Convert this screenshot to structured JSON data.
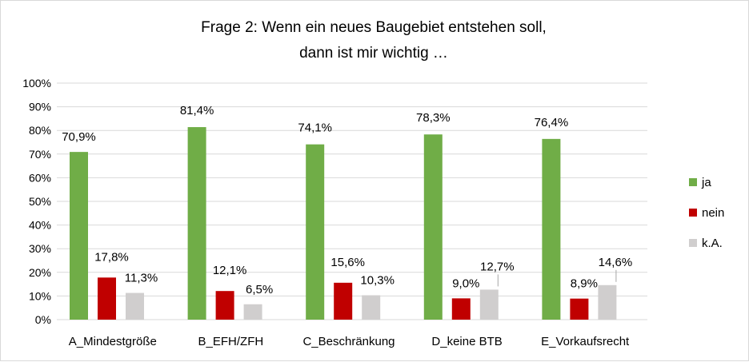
{
  "chart_data": {
    "type": "bar",
    "title_lines": [
      "Frage 2: Wenn ein neues Baugebiet entstehen soll,",
      "dann ist mir wichtig …"
    ],
    "categories": [
      "A_Mindestgröße",
      "B_EFH/ZFH",
      "C_Beschränkung",
      "D_keine BTB",
      "E_Vorkaufsrecht"
    ],
    "series": [
      {
        "name": "ja",
        "color": "#70ad47",
        "values": [
          70.9,
          81.4,
          74.1,
          78.3,
          76.4
        ],
        "labels": [
          "70,9%",
          "81,4%",
          "74,1%",
          "78,3%",
          "76,4%"
        ]
      },
      {
        "name": "nein",
        "color": "#c00000",
        "values": [
          17.8,
          12.1,
          15.6,
          9.0,
          8.9
        ],
        "labels": [
          "17,8%",
          "12,1%",
          "15,6%",
          "9,0%",
          "8,9%"
        ]
      },
      {
        "name": "k.A.",
        "color": "#d0cece",
        "values": [
          11.3,
          6.5,
          10.3,
          12.7,
          14.6
        ],
        "labels": [
          "11,3%",
          "6,5%",
          "10,3%",
          "12,7%",
          "14,6%"
        ]
      }
    ],
    "y_ticks": [
      "0%",
      "10%",
      "20%",
      "30%",
      "40%",
      "50%",
      "60%",
      "70%",
      "80%",
      "90%",
      "100%"
    ],
    "ylim": [
      0,
      100
    ],
    "grid": true,
    "legend_position": "right",
    "xlabel": "",
    "ylabel": ""
  }
}
